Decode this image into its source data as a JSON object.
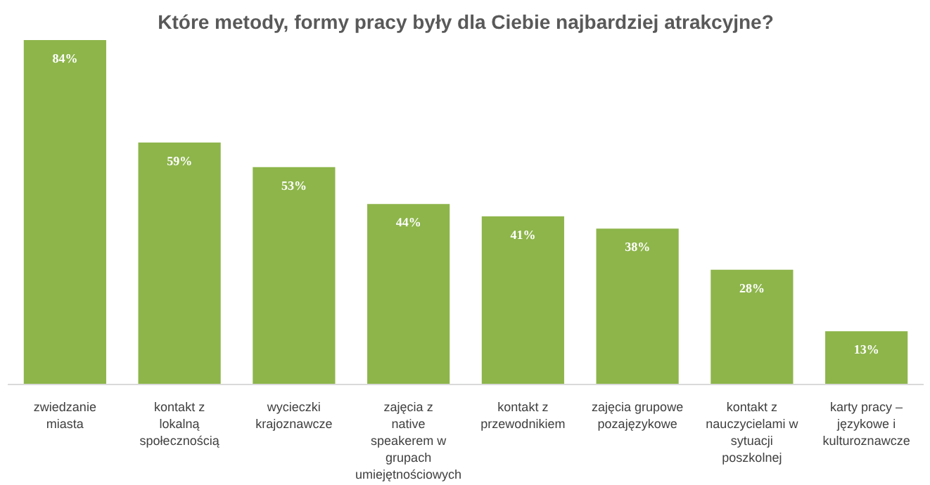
{
  "chart_data": {
    "type": "bar",
    "title": "Które metody, formy pracy były dla Ciebie najbardziej atrakcyjne?",
    "categories": [
      "zwiedzanie miasta",
      "kontakt z lokalną społecznością",
      "wycieczki krajoznawcze",
      "zajęcia z native speakerem w grupach umiejętnościowych",
      "kontakt z przewodnikiem",
      "zajęcia grupowe pozajęzykowe",
      "kontakt z nauczycielami w sytuacji poszkolnej",
      "karty pracy – językowe i kulturoznawcze"
    ],
    "values": [
      84,
      59,
      53,
      44,
      41,
      38,
      28,
      13
    ],
    "value_labels": [
      "84%",
      "59%",
      "53%",
      "44%",
      "41%",
      "38%",
      "28%",
      "13%"
    ],
    "color": "#8db54a"
  }
}
